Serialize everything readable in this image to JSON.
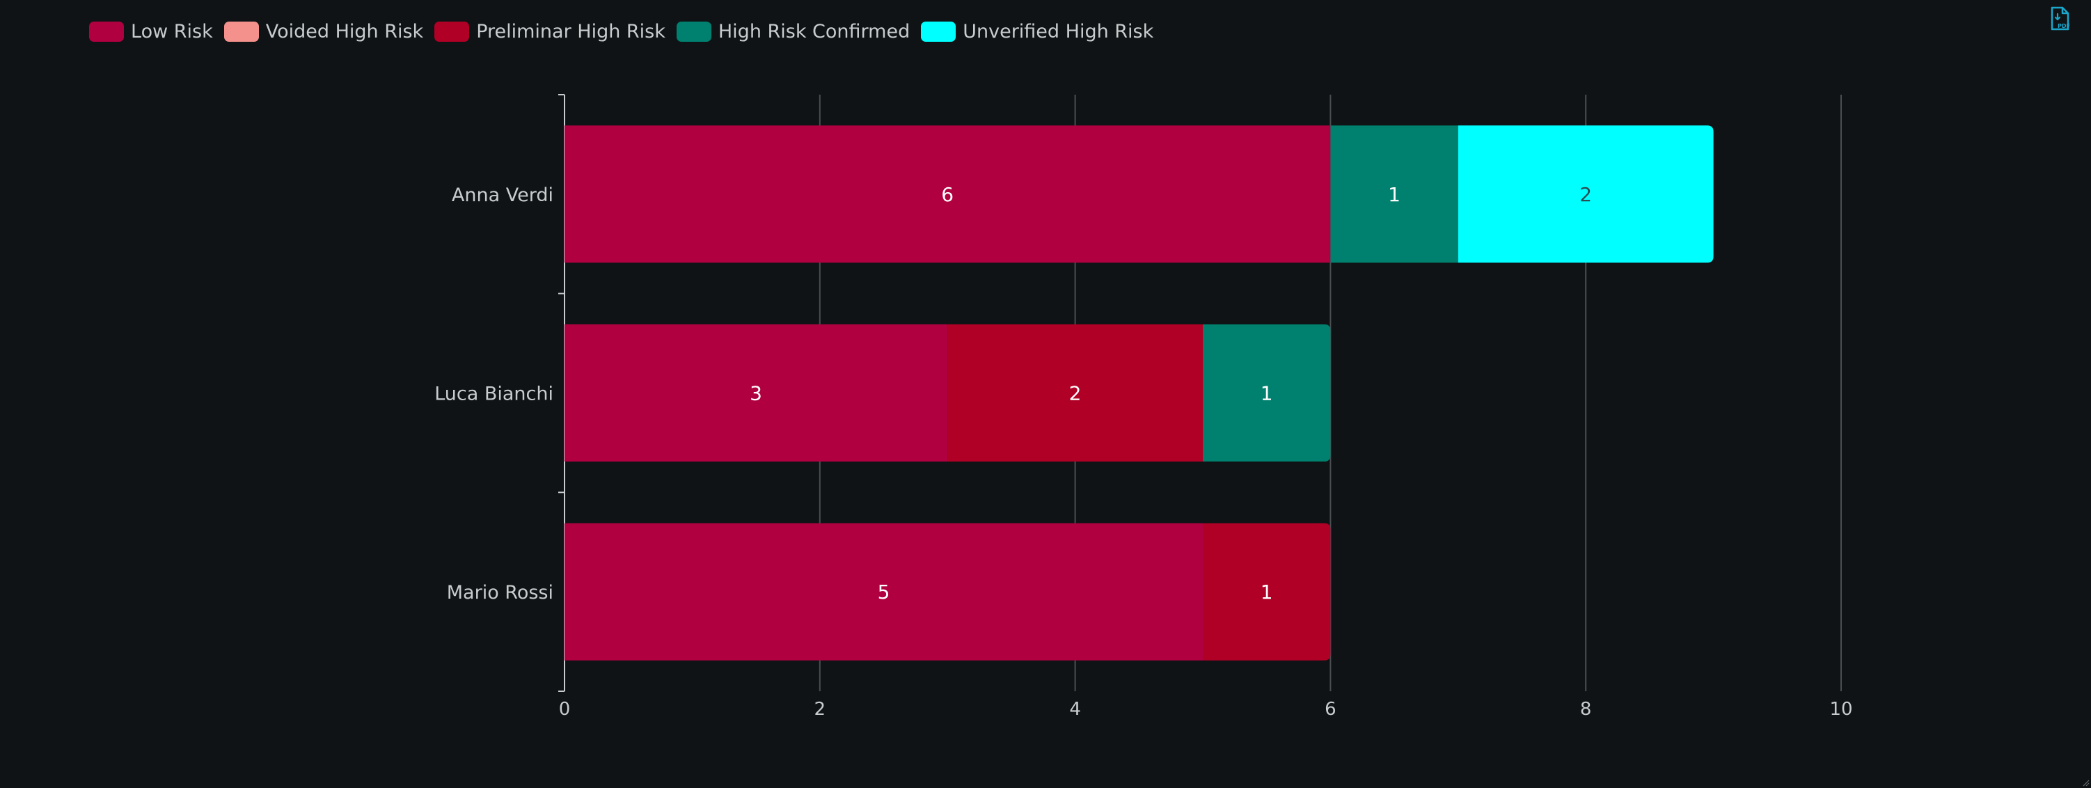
{
  "chart_data": {
    "type": "bar",
    "orientation": "horizontal",
    "stacked": true,
    "categories": [
      "Anna Verdi",
      "Luca Bianchi",
      "Mario Rossi"
    ],
    "series": [
      {
        "name": "Low Risk",
        "color": "#b10040",
        "values": [
          6,
          3,
          5
        ]
      },
      {
        "name": "Voided High Risk",
        "color": "#f4918c",
        "values": [
          0,
          0,
          0
        ]
      },
      {
        "name": "Preliminar High Risk",
        "color": "#b00026",
        "values": [
          0,
          2,
          1
        ]
      },
      {
        "name": "High Risk Confirmed",
        "color": "#00806e",
        "values": [
          1,
          1,
          0
        ]
      },
      {
        "name": "Unverified High Risk",
        "color": "#00ffff",
        "values": [
          2,
          0,
          0
        ]
      }
    ],
    "xlim": [
      0,
      10
    ],
    "xticks": [
      0,
      2,
      4,
      6,
      8,
      10
    ],
    "grid": "vertical",
    "legend_position": "top-left",
    "title": "",
    "xlabel": "",
    "ylabel": ""
  },
  "toolbar": {
    "export_icon": "pdf-file-icon",
    "export_label": "PDF"
  },
  "theme": {
    "background": "#0f1315",
    "grid": "#4a4e51",
    "axis": "#c9ccce"
  }
}
